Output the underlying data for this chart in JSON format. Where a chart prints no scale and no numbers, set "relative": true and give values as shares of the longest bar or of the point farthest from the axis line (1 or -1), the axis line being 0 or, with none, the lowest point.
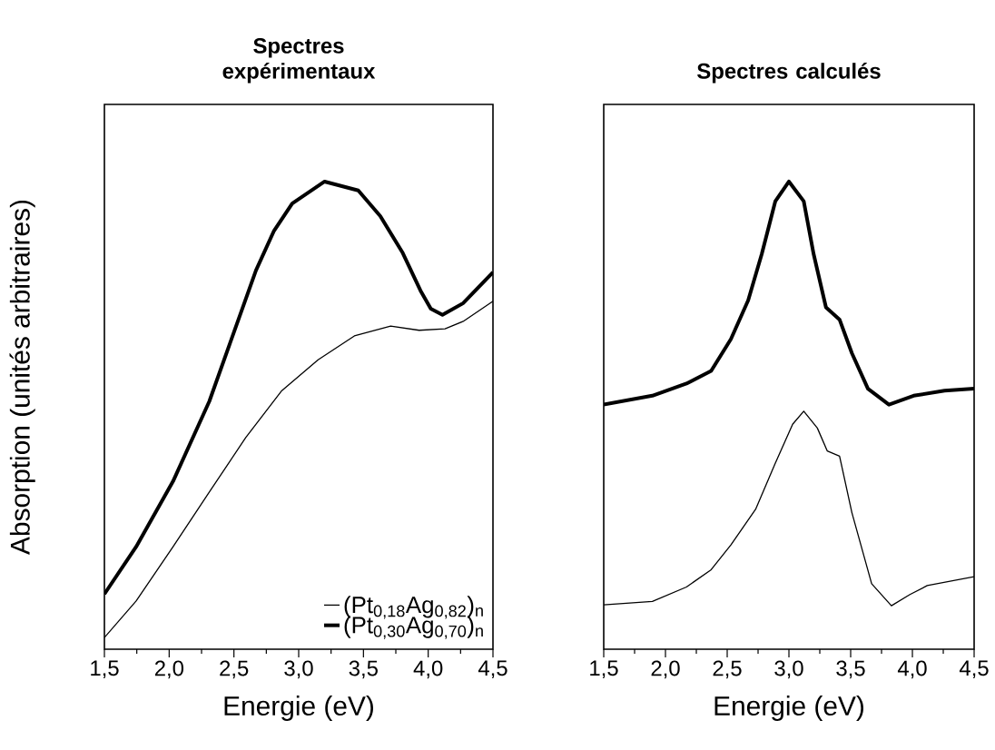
{
  "chart_data": [
    {
      "type": "line",
      "title": "Spectres expérimentaux",
      "xlabel": "Energie (eV)",
      "ylabel": "Absorption (unités arbitraires)",
      "relative": true,
      "legend": "bottom right",
      "xlim": [
        1.5,
        4.5
      ],
      "xticks": [
        {
          "value": 1.5,
          "label": "1,5"
        },
        {
          "value": 2.0,
          "label": "2,0"
        },
        {
          "value": 2.5,
          "label": "2,5"
        },
        {
          "value": 3.0,
          "label": "3,0"
        },
        {
          "value": 3.5,
          "label": "3,5"
        },
        {
          "value": 4.0,
          "label": "4,0"
        },
        {
          "value": 4.5,
          "label": "4,5"
        }
      ],
      "series": [
        {
          "name": "(Pt$_{0,18}$Ag$_{0,82}$)$_{n}$",
          "color": "#000000",
          "x": [
            1.5,
            1.745,
            2.03,
            2.31,
            2.59,
            2.87,
            3.15,
            3.43,
            3.71,
            3.93,
            4.13,
            4.27,
            4.5
          ],
          "values": [
            0.025,
            0.103,
            0.219,
            0.336,
            0.452,
            0.553,
            0.619,
            0.67,
            0.691,
            0.682,
            0.685,
            0.701,
            0.744
          ]
        },
        {
          "name": "(Pt$_{0,30}$Ag$_{0,70}$)$_{n}$",
          "color": "#000000",
          "x": [
            1.5,
            1.745,
            2.03,
            2.31,
            2.5,
            2.67,
            2.81,
            2.95,
            3.2,
            3.46,
            3.63,
            3.8,
            3.94,
            4.02,
            4.11,
            4.27,
            4.5
          ],
          "values": [
            0.118,
            0.219,
            0.359,
            0.53,
            0.678,
            0.81,
            0.895,
            0.953,
            1.0,
            0.981,
            0.926,
            0.849,
            0.767,
            0.728,
            0.715,
            0.74,
            0.806
          ]
        }
      ]
    },
    {
      "type": "line",
      "title": "Spectres calculés",
      "xlabel": "Energie (eV)",
      "relative": true,
      "xlim": [
        1.5,
        4.5
      ],
      "xticks": [
        {
          "value": 1.5,
          "label": "1,5"
        },
        {
          "value": 2.0,
          "label": "2,0"
        },
        {
          "value": 2.5,
          "label": "2,5"
        },
        {
          "value": 3.0,
          "label": "3,0"
        },
        {
          "value": 3.5,
          "label": "3,5"
        },
        {
          "value": 4.0,
          "label": "4,0"
        },
        {
          "value": 4.5,
          "label": "4,5"
        }
      ],
      "series": [
        {
          "color": "#000000",
          "x": [
            1.5,
            1.894,
            2.17,
            2.37,
            2.53,
            2.73,
            2.89,
            3.03,
            3.12,
            3.23,
            3.31,
            3.41,
            3.51,
            3.67,
            3.83,
            3.98,
            4.12,
            4.5
          ],
          "values": [
            0.095,
            0.102,
            0.133,
            0.17,
            0.223,
            0.299,
            0.398,
            0.481,
            0.509,
            0.473,
            0.424,
            0.413,
            0.292,
            0.14,
            0.093,
            0.117,
            0.136,
            0.155
          ]
        },
        {
          "color": "#000000",
          "x": [
            1.5,
            1.894,
            2.17,
            2.37,
            2.53,
            2.67,
            2.78,
            2.89,
            3.0,
            3.12,
            3.2,
            3.3,
            3.41,
            3.51,
            3.64,
            3.81,
            4.01,
            4.26,
            4.5
          ],
          "values": [
            0.523,
            0.542,
            0.568,
            0.595,
            0.663,
            0.746,
            0.845,
            0.958,
            1.0,
            0.958,
            0.845,
            0.731,
            0.705,
            0.633,
            0.557,
            0.523,
            0.542,
            0.553,
            0.557
          ]
        }
      ]
    }
  ]
}
